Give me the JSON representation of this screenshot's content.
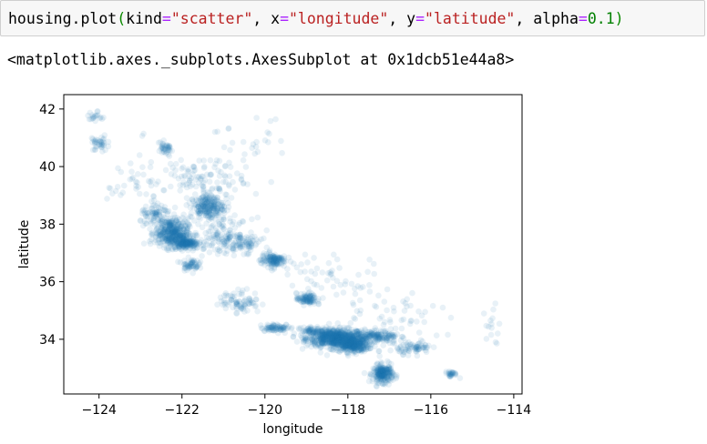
{
  "cell": {
    "code_parts": {
      "func": "housing.plot",
      "open": "(",
      "kw1": "kind",
      "eq1": "=",
      "v1": "\"scatter\"",
      "sep1": ", ",
      "kw2": "x",
      "eq2": "=",
      "v2": "\"longitude\"",
      "sep2": ", ",
      "kw3": "y",
      "eq3": "=",
      "v3": "\"latitude\"",
      "sep3": ", ",
      "kw4": "alpha",
      "eq4": "=",
      "v4": "0.1",
      "close": ")"
    },
    "output": "<matplotlib.axes._subplots.AxesSubplot at 0x1dcb51e44a8>"
  },
  "chart_data": {
    "type": "scatter",
    "xlabel": "longitude",
    "ylabel": "latitude",
    "xlim": [
      -124.85,
      -113.8
    ],
    "ylim": [
      32.1,
      42.5
    ],
    "xticks": [
      -124,
      -122,
      -120,
      -118,
      -116,
      -114
    ],
    "yticks": [
      34,
      36,
      38,
      40,
      42
    ],
    "xtick_labels": [
      "−124",
      "−122",
      "−120",
      "−118",
      "−116",
      "−114"
    ],
    "ytick_labels": [
      "34",
      "36",
      "38",
      "40",
      "42"
    ],
    "alpha": 0.1,
    "color": "#1f77b4",
    "grid": false,
    "clusters": [
      {
        "x": -118.3,
        "y": 34.05,
        "sx": 0.35,
        "sy": 0.15,
        "n": 700
      },
      {
        "x": -117.9,
        "y": 33.8,
        "sx": 0.2,
        "sy": 0.12,
        "n": 350
      },
      {
        "x": -117.15,
        "y": 32.8,
        "sx": 0.12,
        "sy": 0.15,
        "n": 250
      },
      {
        "x": -122.25,
        "y": 37.7,
        "sx": 0.2,
        "sy": 0.25,
        "n": 400
      },
      {
        "x": -121.9,
        "y": 37.35,
        "sx": 0.15,
        "sy": 0.1,
        "n": 200
      },
      {
        "x": -121.4,
        "y": 38.6,
        "sx": 0.2,
        "sy": 0.2,
        "n": 220
      },
      {
        "x": -119.8,
        "y": 36.75,
        "sx": 0.15,
        "sy": 0.12,
        "n": 140
      },
      {
        "x": -119.0,
        "y": 35.4,
        "sx": 0.12,
        "sy": 0.1,
        "n": 100
      },
      {
        "x": -120.6,
        "y": 35.3,
        "sx": 0.25,
        "sy": 0.2,
        "n": 80
      },
      {
        "x": -119.7,
        "y": 34.4,
        "sx": 0.2,
        "sy": 0.06,
        "n": 80
      },
      {
        "x": -121.8,
        "y": 36.6,
        "sx": 0.1,
        "sy": 0.1,
        "n": 60
      },
      {
        "x": -117.3,
        "y": 34.1,
        "sx": 0.25,
        "sy": 0.1,
        "n": 150
      },
      {
        "x": -116.4,
        "y": 33.7,
        "sx": 0.2,
        "sy": 0.1,
        "n": 70
      },
      {
        "x": -122.6,
        "y": 38.3,
        "sx": 0.2,
        "sy": 0.2,
        "n": 80
      },
      {
        "x": -122.4,
        "y": 40.6,
        "sx": 0.1,
        "sy": 0.12,
        "n": 40
      },
      {
        "x": -124.0,
        "y": 40.8,
        "sx": 0.1,
        "sy": 0.15,
        "n": 40
      },
      {
        "x": -121.0,
        "y": 37.6,
        "sx": 0.35,
        "sy": 0.3,
        "n": 150
      },
      {
        "x": -120.5,
        "y": 37.3,
        "sx": 0.2,
        "sy": 0.15,
        "n": 60
      },
      {
        "x": -121.2,
        "y": 39.2,
        "sx": 0.3,
        "sy": 0.4,
        "n": 60
      },
      {
        "x": -115.5,
        "y": 32.8,
        "sx": 0.08,
        "sy": 0.05,
        "n": 30
      },
      {
        "x": -114.6,
        "y": 34.3,
        "sx": 0.15,
        "sy": 0.4,
        "n": 15
      },
      {
        "x": -118.8,
        "y": 34.3,
        "sx": 0.15,
        "sy": 0.06,
        "n": 60
      },
      {
        "x": -122.0,
        "y": 39.7,
        "sx": 0.4,
        "sy": 0.4,
        "n": 50
      },
      {
        "x": -123.0,
        "y": 39.5,
        "sx": 0.4,
        "sy": 0.6,
        "n": 40
      },
      {
        "x": -118.5,
        "y": 36.0,
        "sx": 0.6,
        "sy": 0.6,
        "n": 60
      },
      {
        "x": -120.5,
        "y": 40.5,
        "sx": 0.5,
        "sy": 0.6,
        "n": 40
      },
      {
        "x": -116.8,
        "y": 34.5,
        "sx": 0.5,
        "sy": 0.5,
        "n": 60
      },
      {
        "x": -124.1,
        "y": 41.7,
        "sx": 0.1,
        "sy": 0.1,
        "n": 20
      }
    ]
  }
}
